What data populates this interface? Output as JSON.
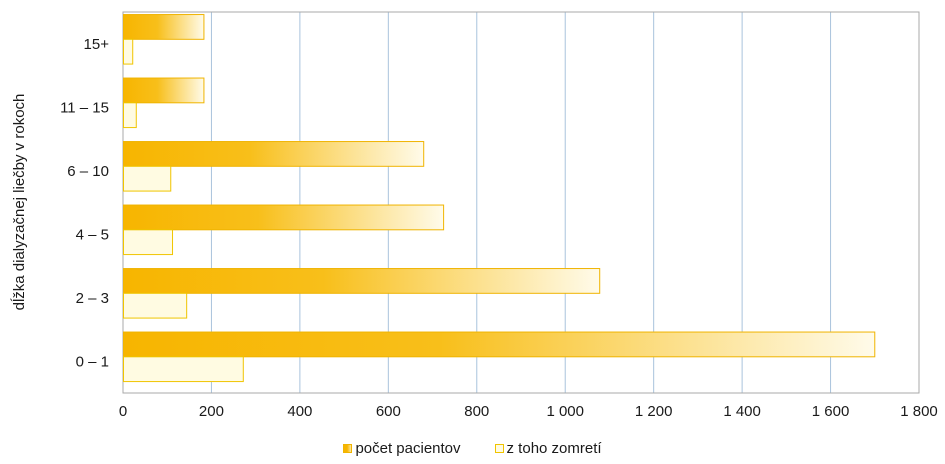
{
  "chart_data": {
    "type": "bar",
    "orientation": "horizontal",
    "categories": [
      "0 – 1",
      "2 – 3",
      "4 – 5",
      "6 – 10",
      "11 – 15",
      "15+"
    ],
    "series": [
      {
        "name": "počet pacientov",
        "values": [
          1700,
          1078,
          725,
          680,
          183,
          183
        ]
      },
      {
        "name": "z toho zomretí",
        "values": [
          272,
          144,
          112,
          108,
          30,
          22
        ]
      }
    ],
    "xlim": [
      0,
      1800
    ],
    "xticks": [
      "0",
      "200",
      "400",
      "600",
      "800",
      "1 000",
      "1 200",
      "1 400",
      "1 600",
      "1 800"
    ],
    "ylabel": "dĺžka dialyzačnej liečby v rokoch",
    "xlabel": "",
    "grid": "vertical",
    "legend_position": "bottom",
    "colors": {
      "series0_fill_start": "#f7b500",
      "series0_fill_end": "#fffbea",
      "series0_stroke": "#f0b400",
      "series1_fill": "#fffbe2",
      "series1_stroke": "#f0c400",
      "grid": "#a9c3dc",
      "frame": "#a9a9a9"
    }
  }
}
